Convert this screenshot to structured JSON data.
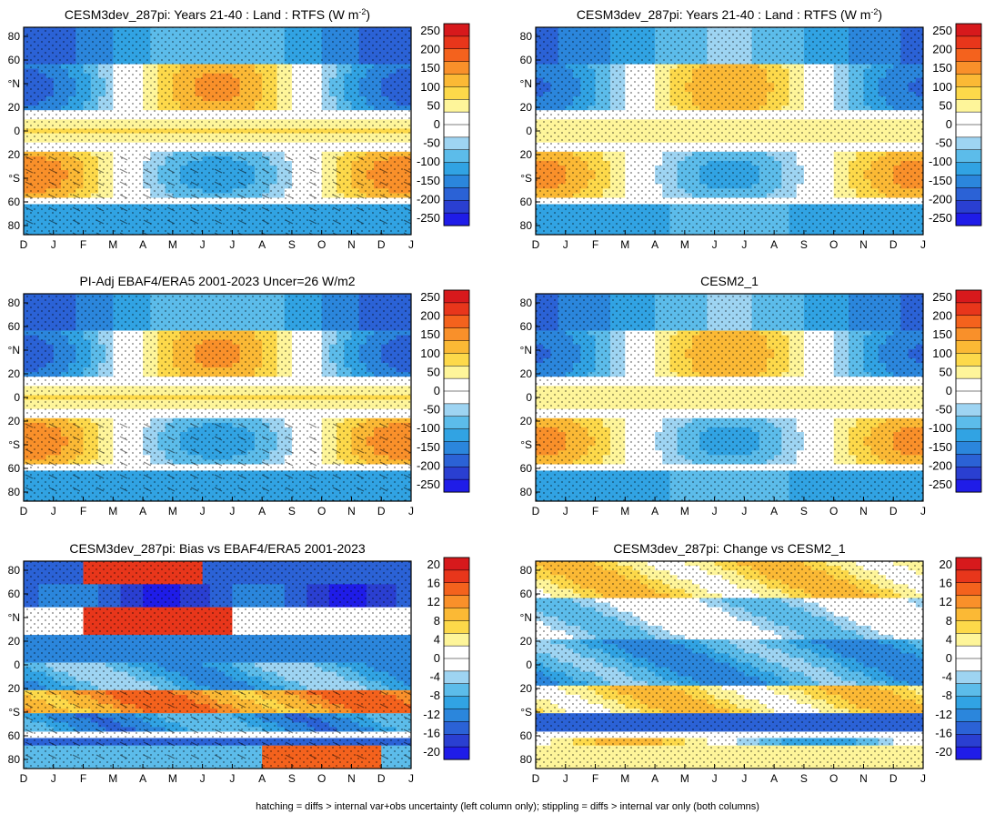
{
  "figure": {
    "caption": "hatching = diffs > internal var+obs uncertainty (left column only); stippling = diffs > internal var only (both columns)"
  },
  "chart_data": [
    {
      "type": "heatmap",
      "title": "CESM3dev_287pi: Years 21-40 : Land : RTFS (W m",
      "title_sup": "-2",
      "title_end": ")",
      "xlabel": "",
      "ylabel": "",
      "x_ticks": [
        "D",
        "J",
        "F",
        "M",
        "A",
        "M",
        "J",
        "J",
        "A",
        "S",
        "O",
        "N",
        "D",
        "J"
      ],
      "y_ticks": [
        "80",
        "60",
        "°N",
        "20",
        "0",
        "20",
        "°S",
        "60",
        "80"
      ],
      "ylim": [
        -90,
        90
      ],
      "colorbar": [
        "250",
        "200",
        "150",
        "100",
        "50",
        "0",
        "-50",
        "-100",
        "-150",
        "-200",
        "-250"
      ],
      "scale": "abs",
      "stippled": true,
      "hatched": true
    },
    {
      "type": "heatmap",
      "title": "CESM3dev_287pi: Years 21-40 : Land : RTFS (W m",
      "title_sup": "-2",
      "title_end": ")",
      "xlabel": "",
      "ylabel": "",
      "x_ticks": [
        "D",
        "J",
        "F",
        "M",
        "A",
        "M",
        "J",
        "J",
        "A",
        "S",
        "O",
        "N",
        "D",
        "J"
      ],
      "y_ticks": [
        "80",
        "60",
        "°N",
        "20",
        "0",
        "20",
        "°S",
        "60",
        "80"
      ],
      "ylim": [
        -90,
        90
      ],
      "colorbar": [
        "250",
        "200",
        "150",
        "100",
        "50",
        "0",
        "-50",
        "-100",
        "-150",
        "-200",
        "-250"
      ],
      "scale": "abs",
      "stippled": true,
      "hatched": false
    },
    {
      "type": "heatmap",
      "title": "PI-Adj EBAF4/ERA5 2001-2023 Uncer=26 W/m2",
      "title_sup": "",
      "title_end": "",
      "xlabel": "",
      "ylabel": "",
      "x_ticks": [
        "D",
        "J",
        "F",
        "M",
        "A",
        "M",
        "J",
        "J",
        "A",
        "S",
        "O",
        "N",
        "D",
        "J"
      ],
      "y_ticks": [
        "80",
        "60",
        "°N",
        "20",
        "0",
        "20",
        "°S",
        "60",
        "80"
      ],
      "ylim": [
        -90,
        90
      ],
      "colorbar": [
        "250",
        "200",
        "150",
        "100",
        "50",
        "0",
        "-50",
        "-100",
        "-150",
        "-200",
        "-250"
      ],
      "scale": "abs",
      "stippled": true,
      "hatched": true
    },
    {
      "type": "heatmap",
      "title": "CESM2_1",
      "title_sup": "",
      "title_end": "",
      "xlabel": "",
      "ylabel": "",
      "x_ticks": [
        "D",
        "J",
        "F",
        "M",
        "A",
        "M",
        "J",
        "J",
        "A",
        "S",
        "O",
        "N",
        "D",
        "J"
      ],
      "y_ticks": [
        "80",
        "60",
        "°N",
        "20",
        "0",
        "20",
        "°S",
        "60",
        "80"
      ],
      "ylim": [
        -90,
        90
      ],
      "colorbar": [
        "250",
        "200",
        "150",
        "100",
        "50",
        "0",
        "-50",
        "-100",
        "-150",
        "-200",
        "-250"
      ],
      "scale": "abs",
      "stippled": true,
      "hatched": false
    },
    {
      "type": "heatmap",
      "title": "CESM3dev_287pi: Bias vs EBAF4/ERA5 2001-2023",
      "title_sup": "",
      "title_end": "",
      "xlabel": "",
      "ylabel": "",
      "x_ticks": [
        "D",
        "J",
        "F",
        "M",
        "A",
        "M",
        "J",
        "J",
        "A",
        "S",
        "O",
        "N",
        "D",
        "J"
      ],
      "y_ticks": [
        "80",
        "60",
        "°N",
        "20",
        "0",
        "20",
        "°S",
        "60",
        "80"
      ],
      "ylim": [
        -90,
        90
      ],
      "colorbar": [
        "20",
        "16",
        "12",
        "8",
        "4",
        "0",
        "-4",
        "-8",
        "-12",
        "-16",
        "-20"
      ],
      "scale": "bias",
      "stippled": true,
      "hatched": true
    },
    {
      "type": "heatmap",
      "title": "CESM3dev_287pi: Change vs CESM2_1",
      "title_sup": "",
      "title_end": "",
      "xlabel": "",
      "ylabel": "",
      "x_ticks": [
        "D",
        "J",
        "F",
        "M",
        "A",
        "M",
        "J",
        "J",
        "A",
        "S",
        "O",
        "N",
        "D",
        "J"
      ],
      "y_ticks": [
        "80",
        "60",
        "°N",
        "20",
        "0",
        "20",
        "°S",
        "60",
        "80"
      ],
      "ylim": [
        -90,
        90
      ],
      "colorbar": [
        "20",
        "16",
        "12",
        "8",
        "4",
        "0",
        "-4",
        "-8",
        "-12",
        "-16",
        "-20"
      ],
      "scale": "change",
      "stippled": true,
      "hatched": false
    }
  ],
  "colors": {
    "cb_abs": [
      "#d7191c",
      "#e8361b",
      "#f4621d",
      "#f9902a",
      "#fbb935",
      "#fdd94a",
      "#fef59a",
      "#ffffff",
      "#ffffff",
      "#9ed4f2",
      "#5cbcea",
      "#31a3e3",
      "#2b86dc",
      "#2b62d6",
      "#2a3fd1",
      "#1f1ce8"
    ],
    "cb_bias": [
      "#d7191c",
      "#e8361b",
      "#f4621d",
      "#f9902a",
      "#fbb935",
      "#fdd94a",
      "#fef59a",
      "#ffffff",
      "#ffffff",
      "#9ed4f2",
      "#5cbcea",
      "#31a3e3",
      "#2b86dc",
      "#2b62d6",
      "#2a3fd1",
      "#1f1ce8"
    ],
    "land_mask": "#ffffff"
  }
}
